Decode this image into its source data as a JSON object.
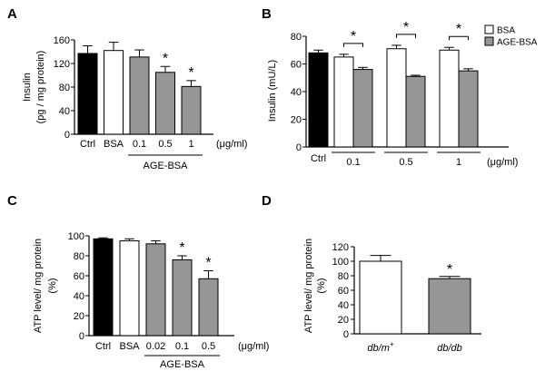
{
  "colors": {
    "black": "#000000",
    "white": "#ffffff",
    "gray": "#969696",
    "axis": "#000000"
  },
  "chart_data": [
    {
      "id": "A",
      "panel_label": "A",
      "type": "bar",
      "ylabel_lines": [
        "Insulin",
        "(pg / mg protein)"
      ],
      "ylim": [
        0,
        160
      ],
      "yticks": [
        0,
        40,
        80,
        120,
        160
      ],
      "bars": [
        {
          "label": "Ctrl",
          "value": 137,
          "err": 13,
          "fill": "black",
          "sig": ""
        },
        {
          "label": "BSA",
          "value": 142,
          "err": 14,
          "fill": "white",
          "sig": ""
        },
        {
          "label": "0.1",
          "value": 131,
          "err": 12,
          "fill": "gray",
          "sig": ""
        },
        {
          "label": "0.5",
          "value": 105,
          "err": 10,
          "fill": "gray",
          "sig": "*"
        },
        {
          "label": "1",
          "value": 81,
          "err": 10,
          "fill": "gray",
          "sig": "*"
        }
      ],
      "unit_label": "(μg/ml)",
      "group_label": "AGE-BSA",
      "group_span": [
        2,
        4
      ]
    },
    {
      "id": "B",
      "panel_label": "B",
      "type": "bar",
      "ylabel_lines": [
        "Insulin (mU/L)"
      ],
      "ylim": [
        0,
        80
      ],
      "yticks": [
        0,
        20,
        40,
        60,
        80
      ],
      "bars": [
        {
          "label": "Ctrl",
          "value": 68,
          "err": 2,
          "fill": "black",
          "pair": 0
        },
        {
          "label": "",
          "value": 65,
          "err": 2,
          "fill": "white",
          "pair": 1
        },
        {
          "label": "",
          "value": 56,
          "err": 1.5,
          "fill": "gray",
          "pair": 1
        },
        {
          "label": "",
          "value": 71,
          "err": 2.5,
          "fill": "white",
          "pair": 2
        },
        {
          "label": "",
          "value": 51,
          "err": 0.8,
          "fill": "gray",
          "pair": 2
        },
        {
          "label": "",
          "value": 70,
          "err": 2,
          "fill": "white",
          "pair": 3
        },
        {
          "label": "",
          "value": 55,
          "err": 1.5,
          "fill": "gray",
          "pair": 3
        }
      ],
      "pair_labels": [
        "0.1",
        "0.5",
        "1"
      ],
      "unit_label": "(μg/ml)",
      "sig_brackets": [
        {
          "from": 1,
          "to": 2,
          "sig": "*"
        },
        {
          "from": 3,
          "to": 4,
          "sig": "*"
        },
        {
          "from": 5,
          "to": 6,
          "sig": "*"
        }
      ],
      "legend": [
        {
          "label": "BSA",
          "fill": "white"
        },
        {
          "label": "AGE-BSA",
          "fill": "gray"
        }
      ]
    },
    {
      "id": "C",
      "panel_label": "C",
      "type": "bar",
      "ylabel_lines": [
        "ATP level/ mg protein",
        "(%)"
      ],
      "ylim": [
        0,
        100
      ],
      "yticks": [
        0,
        20,
        40,
        60,
        80,
        100
      ],
      "bars": [
        {
          "label": "Ctrl",
          "value": 97,
          "err": 1,
          "fill": "black",
          "sig": ""
        },
        {
          "label": "BSA",
          "value": 95,
          "err": 2,
          "fill": "white",
          "sig": ""
        },
        {
          "label": "0.02",
          "value": 92,
          "err": 3,
          "fill": "gray",
          "sig": ""
        },
        {
          "label": "0.1",
          "value": 76,
          "err": 4,
          "fill": "gray",
          "sig": "*"
        },
        {
          "label": "0.5",
          "value": 57,
          "err": 8,
          "fill": "gray",
          "sig": "*"
        }
      ],
      "unit_label": "(μg/ml)",
      "group_label": "AGE-BSA",
      "group_span": [
        2,
        4
      ]
    },
    {
      "id": "D",
      "panel_label": "D",
      "type": "bar",
      "ylabel_lines": [
        "ATP level/ mg protein",
        "(%)"
      ],
      "ylim": [
        0,
        120
      ],
      "yticks": [
        0,
        20,
        40,
        60,
        80,
        100,
        120
      ],
      "bars": [
        {
          "label_main": "db/m",
          "label_sup": "+",
          "value": 100,
          "err": 8,
          "fill": "white",
          "sig": ""
        },
        {
          "label_main": "db/db",
          "label_sup": "",
          "value": 76,
          "err": 3,
          "fill": "gray",
          "sig": "*"
        }
      ]
    }
  ]
}
